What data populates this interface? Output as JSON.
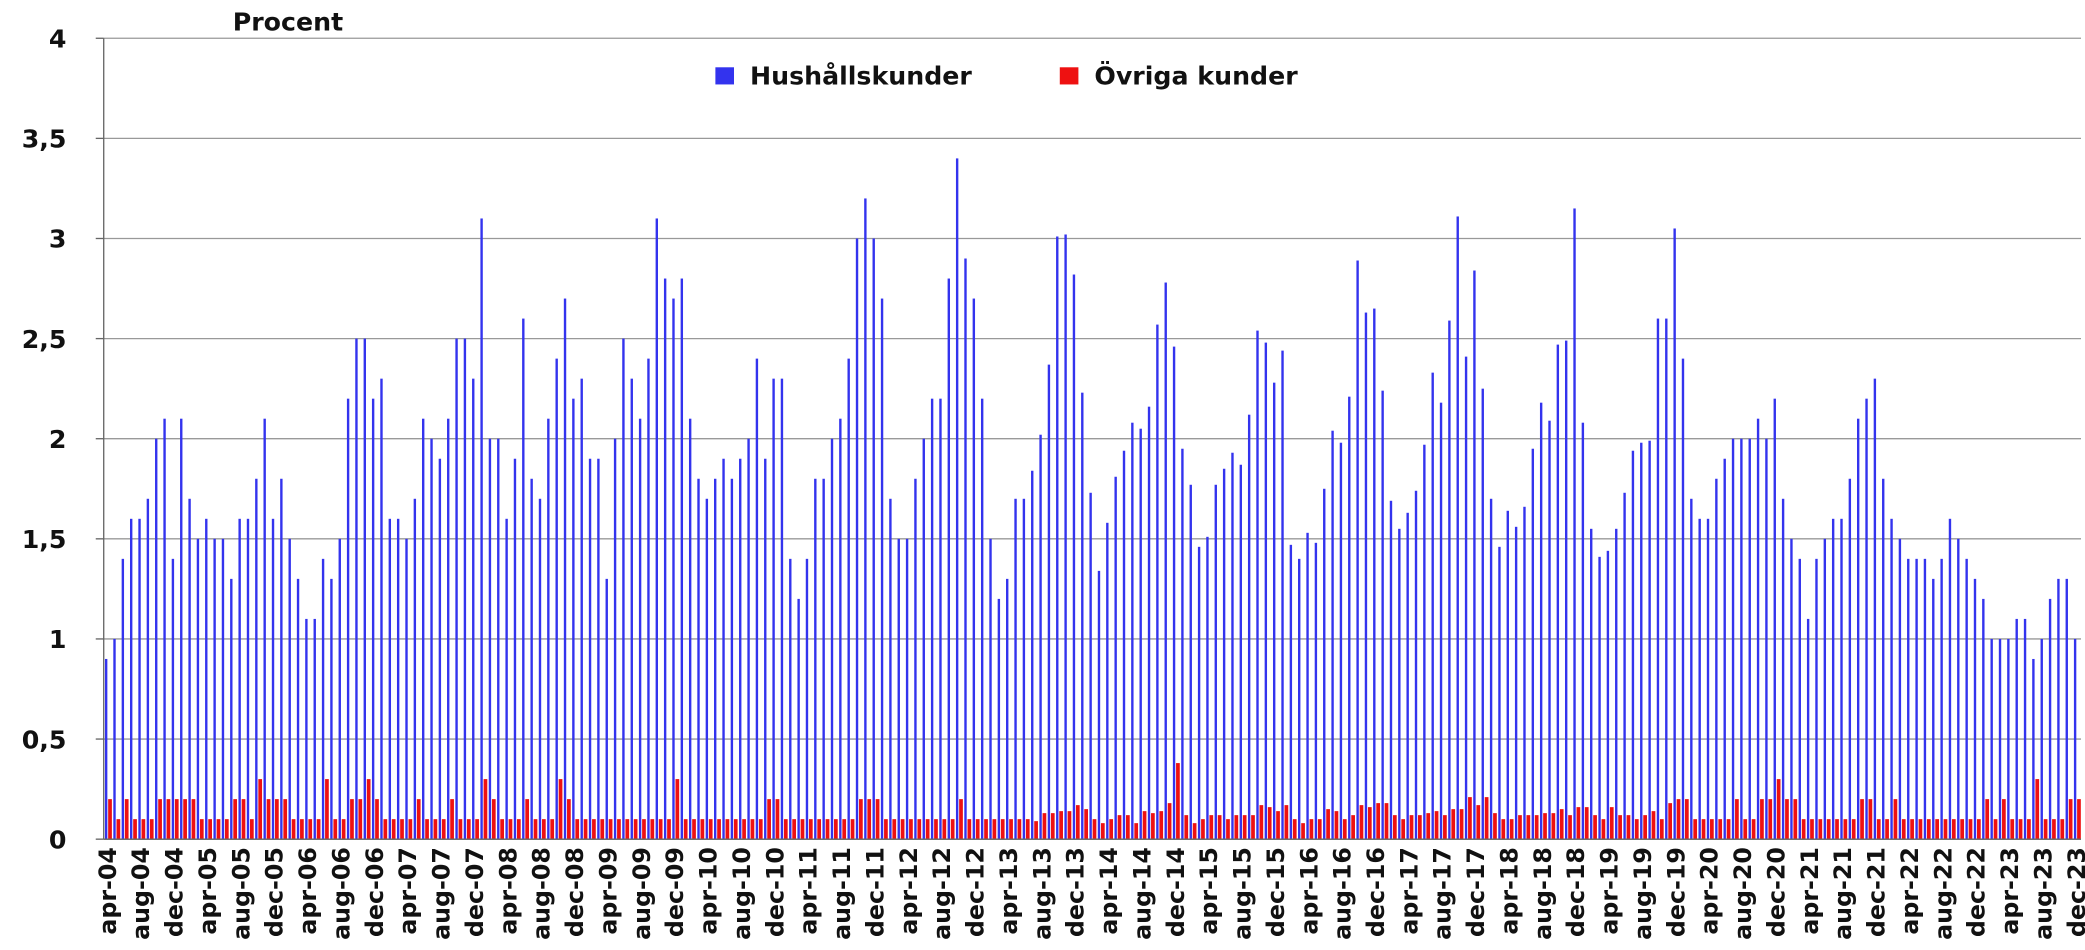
{
  "chart_data": {
    "type": "bar",
    "y_axis_label": "Procent",
    "legend": "top",
    "grid": true,
    "ylim": [
      0,
      4
    ],
    "yticks": [
      0,
      {
        "value": 0.5,
        "label": "0,5"
      },
      1,
      {
        "value": 1.5,
        "label": "1,5"
      },
      2,
      {
        "value": 2.5,
        "label": "2,5"
      },
      3,
      {
        "value": 3.5,
        "label": "3,5"
      },
      4
    ],
    "categories": [
      "apr-04",
      null,
      null,
      null,
      "aug-04",
      null,
      null,
      null,
      "dec-04",
      null,
      null,
      null,
      "apr-05",
      null,
      null,
      null,
      "aug-05",
      null,
      null,
      null,
      "dec-05",
      null,
      null,
      null,
      "apr-06",
      null,
      null,
      null,
      "aug-06",
      null,
      null,
      null,
      "dec-06",
      null,
      null,
      null,
      "apr-07",
      null,
      null,
      null,
      "aug-07",
      null,
      null,
      null,
      "dec-07",
      null,
      null,
      null,
      "apr-08",
      null,
      null,
      null,
      "aug-08",
      null,
      null,
      null,
      "dec-08",
      null,
      null,
      null,
      "apr-09",
      null,
      null,
      null,
      "aug-09",
      null,
      null,
      null,
      "dec-09",
      null,
      null,
      null,
      "apr-10",
      null,
      null,
      null,
      "aug-10",
      null,
      null,
      null,
      "dec-10",
      null,
      null,
      null,
      "apr-11",
      null,
      null,
      null,
      "aug-11",
      null,
      null,
      null,
      "dec-11",
      null,
      null,
      null,
      "apr-12",
      null,
      null,
      null,
      "aug-12",
      null,
      null,
      null,
      "dec-12",
      null,
      null,
      null,
      "apr-13",
      null,
      null,
      null,
      "aug-13",
      null,
      null,
      null,
      "dec-13",
      null,
      null,
      null,
      "apr-14",
      null,
      null,
      null,
      "aug-14",
      null,
      null,
      null,
      "dec-14",
      null,
      null,
      null,
      "apr-15",
      null,
      null,
      null,
      "aug-15",
      null,
      null,
      null,
      "dec-15",
      null,
      null,
      null,
      "apr-16",
      null,
      null,
      null,
      "aug-16",
      null,
      null,
      null,
      "dec-16",
      null,
      null,
      null,
      "apr-17",
      null,
      null,
      null,
      "aug-17",
      null,
      null,
      null,
      "dec-17",
      null,
      null,
      null,
      "apr-18",
      null,
      null,
      null,
      "aug-18",
      null,
      null,
      null,
      "dec-18",
      null,
      null,
      null,
      "apr-19",
      null,
      null,
      null,
      "aug-19",
      null,
      null,
      null,
      "dec-19",
      null,
      null,
      null,
      "apr-20",
      null,
      null,
      null,
      "aug-20",
      null,
      null,
      null,
      "dec-20",
      null,
      null,
      null,
      "apr-21",
      null,
      null,
      null,
      "aug-21",
      null,
      null,
      null,
      "dec-21",
      null,
      null,
      null,
      "apr-22",
      null,
      null,
      null,
      "aug-22",
      null,
      null,
      null,
      "dec-22",
      null,
      null,
      null,
      "apr-23",
      null,
      null,
      null,
      "aug-23",
      null,
      null,
      null,
      "dec-23"
    ],
    "series": [
      {
        "name": "Hushållskunder",
        "color": "#3333ee",
        "values": [
          0.9,
          1.0,
          1.4,
          1.6,
          1.6,
          1.7,
          2.0,
          2.1,
          1.4,
          2.1,
          1.7,
          1.5,
          1.6,
          1.5,
          1.5,
          1.3,
          1.6,
          1.6,
          1.8,
          2.1,
          1.6,
          1.8,
          1.5,
          1.3,
          1.1,
          1.1,
          1.4,
          1.3,
          1.5,
          2.2,
          2.5,
          2.5,
          2.2,
          2.3,
          1.6,
          1.6,
          1.5,
          1.7,
          2.1,
          2.0,
          1.9,
          2.1,
          2.5,
          2.5,
          2.3,
          3.1,
          2.0,
          2.0,
          1.6,
          1.9,
          2.6,
          1.8,
          1.7,
          2.1,
          2.4,
          2.7,
          2.2,
          2.3,
          1.9,
          1.9,
          1.3,
          2.0,
          2.5,
          2.3,
          2.1,
          2.4,
          3.1,
          2.8,
          2.7,
          2.8,
          2.1,
          1.8,
          1.7,
          1.8,
          1.9,
          1.8,
          1.9,
          2.0,
          2.4,
          1.9,
          2.3,
          2.3,
          1.4,
          1.2,
          1.4,
          1.8,
          1.8,
          2.0,
          2.1,
          2.4,
          3.0,
          3.2,
          3.0,
          2.7,
          1.7,
          1.5,
          1.5,
          1.8,
          2.0,
          2.2,
          2.2,
          2.8,
          3.4,
          2.9,
          2.7,
          2.2,
          1.5,
          1.2,
          1.3,
          1.7,
          1.7,
          1.84,
          2.02,
          2.37,
          3.01,
          3.02,
          2.82,
          2.23,
          1.73,
          1.34,
          1.58,
          1.81,
          1.94,
          2.08,
          2.05,
          2.16,
          2.57,
          2.78,
          2.46,
          1.95,
          1.77,
          1.46,
          1.51,
          1.77,
          1.85,
          1.93,
          1.87,
          2.12,
          2.54,
          2.48,
          2.28,
          2.44,
          1.47,
          1.4,
          1.53,
          1.48,
          1.75,
          2.04,
          1.98,
          2.21,
          2.89,
          2.63,
          2.65,
          2.24,
          1.69,
          1.55,
          1.63,
          1.74,
          1.97,
          2.33,
          2.18,
          2.59,
          3.11,
          2.41,
          2.84,
          2.25,
          1.7,
          1.46,
          1.64,
          1.56,
          1.66,
          1.95,
          2.18,
          2.09,
          2.47,
          2.49,
          3.15,
          2.08,
          1.55,
          1.41,
          1.44,
          1.55,
          1.73,
          1.94,
          1.98,
          1.99,
          2.6,
          2.6,
          3.05,
          2.4,
          1.7,
          1.6,
          1.6,
          1.8,
          1.9,
          2.0,
          2.0,
          2.0,
          2.1,
          2.0,
          2.2,
          1.7,
          1.5,
          1.4,
          1.1,
          1.4,
          1.5,
          1.6,
          1.6,
          1.8,
          2.1,
          2.2,
          2.3,
          1.8,
          1.6,
          1.5,
          1.4,
          1.4,
          1.4,
          1.3,
          1.4,
          1.6,
          1.5,
          1.4,
          1.3,
          1.2,
          1.0,
          1.0,
          1.0,
          1.1,
          1.1,
          0.9,
          1.0,
          1.2,
          1.3,
          1.3,
          1.0
        ]
      },
      {
        "name": "Övriga kunder",
        "color": "#ee1111",
        "values": [
          0.2,
          0.1,
          0.2,
          0.1,
          0.1,
          0.1,
          0.2,
          0.2,
          0.2,
          0.2,
          0.2,
          0.1,
          0.1,
          0.1,
          0.1,
          0.2,
          0.2,
          0.1,
          0.3,
          0.2,
          0.2,
          0.2,
          0.1,
          0.1,
          0.1,
          0.1,
          0.3,
          0.1,
          0.1,
          0.2,
          0.2,
          0.3,
          0.2,
          0.1,
          0.1,
          0.1,
          0.1,
          0.2,
          0.1,
          0.1,
          0.1,
          0.2,
          0.1,
          0.1,
          0.1,
          0.3,
          0.2,
          0.1,
          0.1,
          0.1,
          0.2,
          0.1,
          0.1,
          0.1,
          0.3,
          0.2,
          0.1,
          0.1,
          0.1,
          0.1,
          0.1,
          0.1,
          0.1,
          0.1,
          0.1,
          0.1,
          0.1,
          0.1,
          0.3,
          0.1,
          0.1,
          0.1,
          0.1,
          0.1,
          0.1,
          0.1,
          0.1,
          0.1,
          0.1,
          0.2,
          0.2,
          0.1,
          0.1,
          0.1,
          0.1,
          0.1,
          0.1,
          0.1,
          0.1,
          0.1,
          0.2,
          0.2,
          0.2,
          0.1,
          0.1,
          0.1,
          0.1,
          0.1,
          0.1,
          0.1,
          0.1,
          0.1,
          0.2,
          0.1,
          0.1,
          0.1,
          0.1,
          0.1,
          0.1,
          0.1,
          0.1,
          0.09,
          0.13,
          0.13,
          0.14,
          0.14,
          0.17,
          0.15,
          0.1,
          0.08,
          0.1,
          0.12,
          0.12,
          0.08,
          0.14,
          0.13,
          0.14,
          0.18,
          0.38,
          0.12,
          0.08,
          0.1,
          0.12,
          0.12,
          0.1,
          0.12,
          0.12,
          0.12,
          0.17,
          0.16,
          0.14,
          0.17,
          0.1,
          0.08,
          0.1,
          0.1,
          0.15,
          0.14,
          0.1,
          0.12,
          0.17,
          0.16,
          0.18,
          0.18,
          0.12,
          0.1,
          0.12,
          0.12,
          0.13,
          0.14,
          0.12,
          0.15,
          0.15,
          0.21,
          0.17,
          0.21,
          0.13,
          0.1,
          0.1,
          0.12,
          0.12,
          0.12,
          0.13,
          0.13,
          0.15,
          0.12,
          0.16,
          0.16,
          0.12,
          0.1,
          0.16,
          0.12,
          0.12,
          0.1,
          0.12,
          0.14,
          0.1,
          0.18,
          0.2,
          0.2,
          0.1,
          0.1,
          0.1,
          0.1,
          0.1,
          0.2,
          0.1,
          0.1,
          0.2,
          0.2,
          0.3,
          0.2,
          0.2,
          0.1,
          0.1,
          0.1,
          0.1,
          0.1,
          0.1,
          0.1,
          0.2,
          0.2,
          0.1,
          0.1,
          0.2,
          0.1,
          0.1,
          0.1,
          0.1,
          0.1,
          0.1,
          0.1,
          0.1,
          0.1,
          0.1,
          0.2,
          0.1,
          0.2,
          0.1,
          0.1,
          0.1,
          0.3,
          0.1,
          0.1,
          0.1,
          0.2,
          0.2
        ]
      }
    ]
  }
}
